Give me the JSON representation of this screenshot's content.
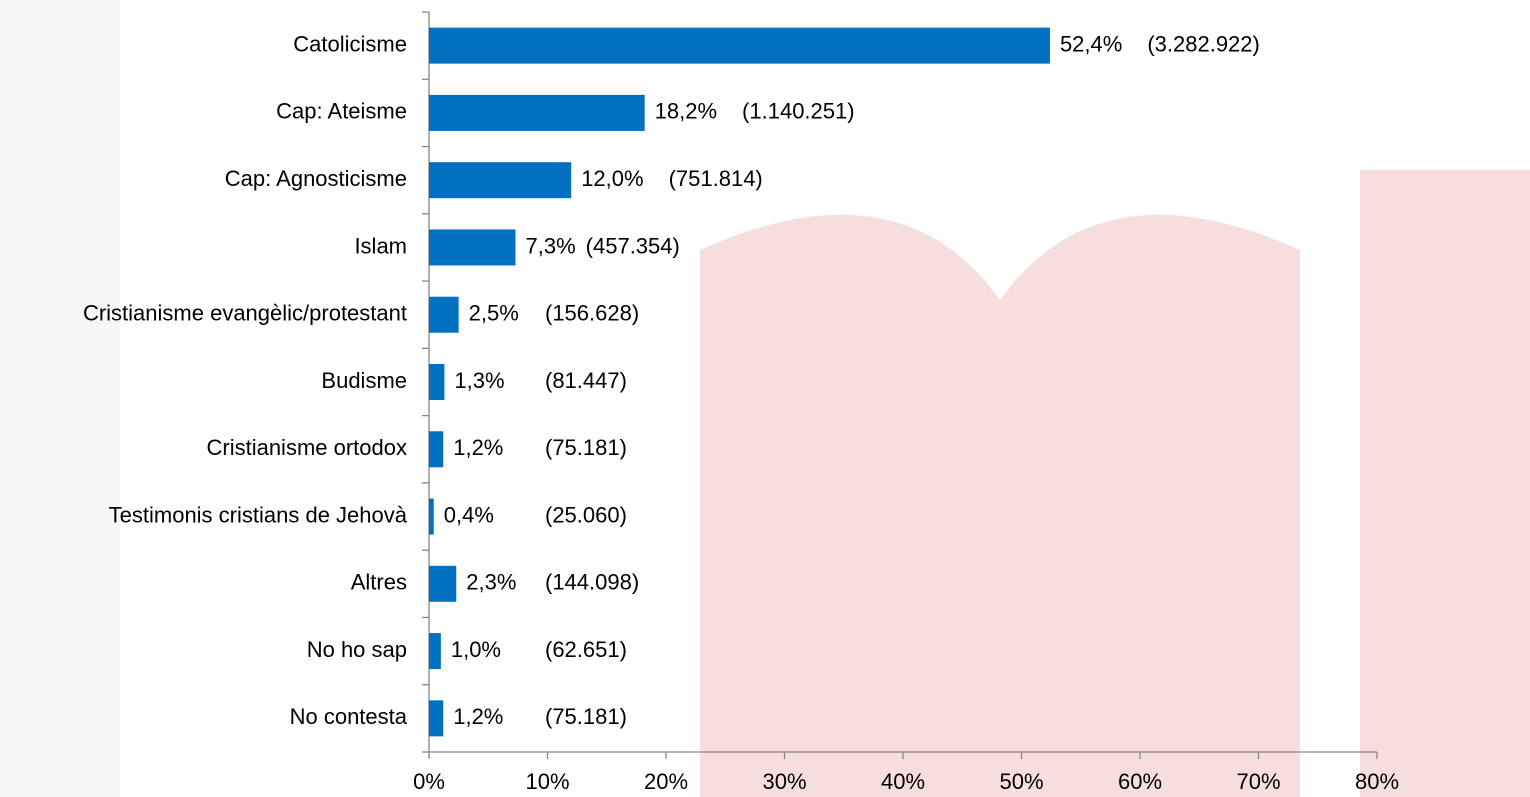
{
  "chart_data": {
    "type": "barh",
    "categories": [
      "Catolicisme",
      "Cap: Ateisme",
      "Cap: Agnosticisme",
      "Islam",
      "Cristianisme evangèlic/protestant",
      "Budisme",
      "Cristianisme ortodox",
      "Testimonis cristians de Jehovà",
      "Altres",
      "No ho sap",
      "No contesta"
    ],
    "values": [
      52.4,
      18.2,
      12.0,
      7.3,
      2.5,
      1.3,
      1.2,
      0.4,
      2.3,
      1.0,
      1.2
    ],
    "value_labels": [
      "52,4%",
      "18,2%",
      "12,0%",
      "7,3%",
      "2,5%",
      "1,3%",
      "1,2%",
      "0,4%",
      "2,3%",
      "1,0%",
      "1,2%"
    ],
    "count_labels": [
      "(3.282.922)",
      "(1.140.251)",
      "(751.814)",
      "(457.354)",
      "(156.628)",
      "(81.447)",
      "(75.181)",
      "(25.060)",
      "(144.098)",
      "(62.651)",
      "(75.181)"
    ],
    "color": "#0070c0",
    "xlim": [
      0,
      80
    ],
    "xticks": [
      {
        "value": 0,
        "label": "0%"
      },
      {
        "value": 10,
        "label": "10%"
      },
      {
        "value": 20,
        "label": "20%"
      },
      {
        "value": 30,
        "label": "30%"
      },
      {
        "value": 40,
        "label": "40%"
      },
      {
        "value": 50,
        "label": "50%"
      },
      {
        "value": 60,
        "label": "60%"
      },
      {
        "value": 70,
        "label": "70%"
      },
      {
        "value": 80,
        "label": "80%"
      }
    ],
    "grid": false
  }
}
